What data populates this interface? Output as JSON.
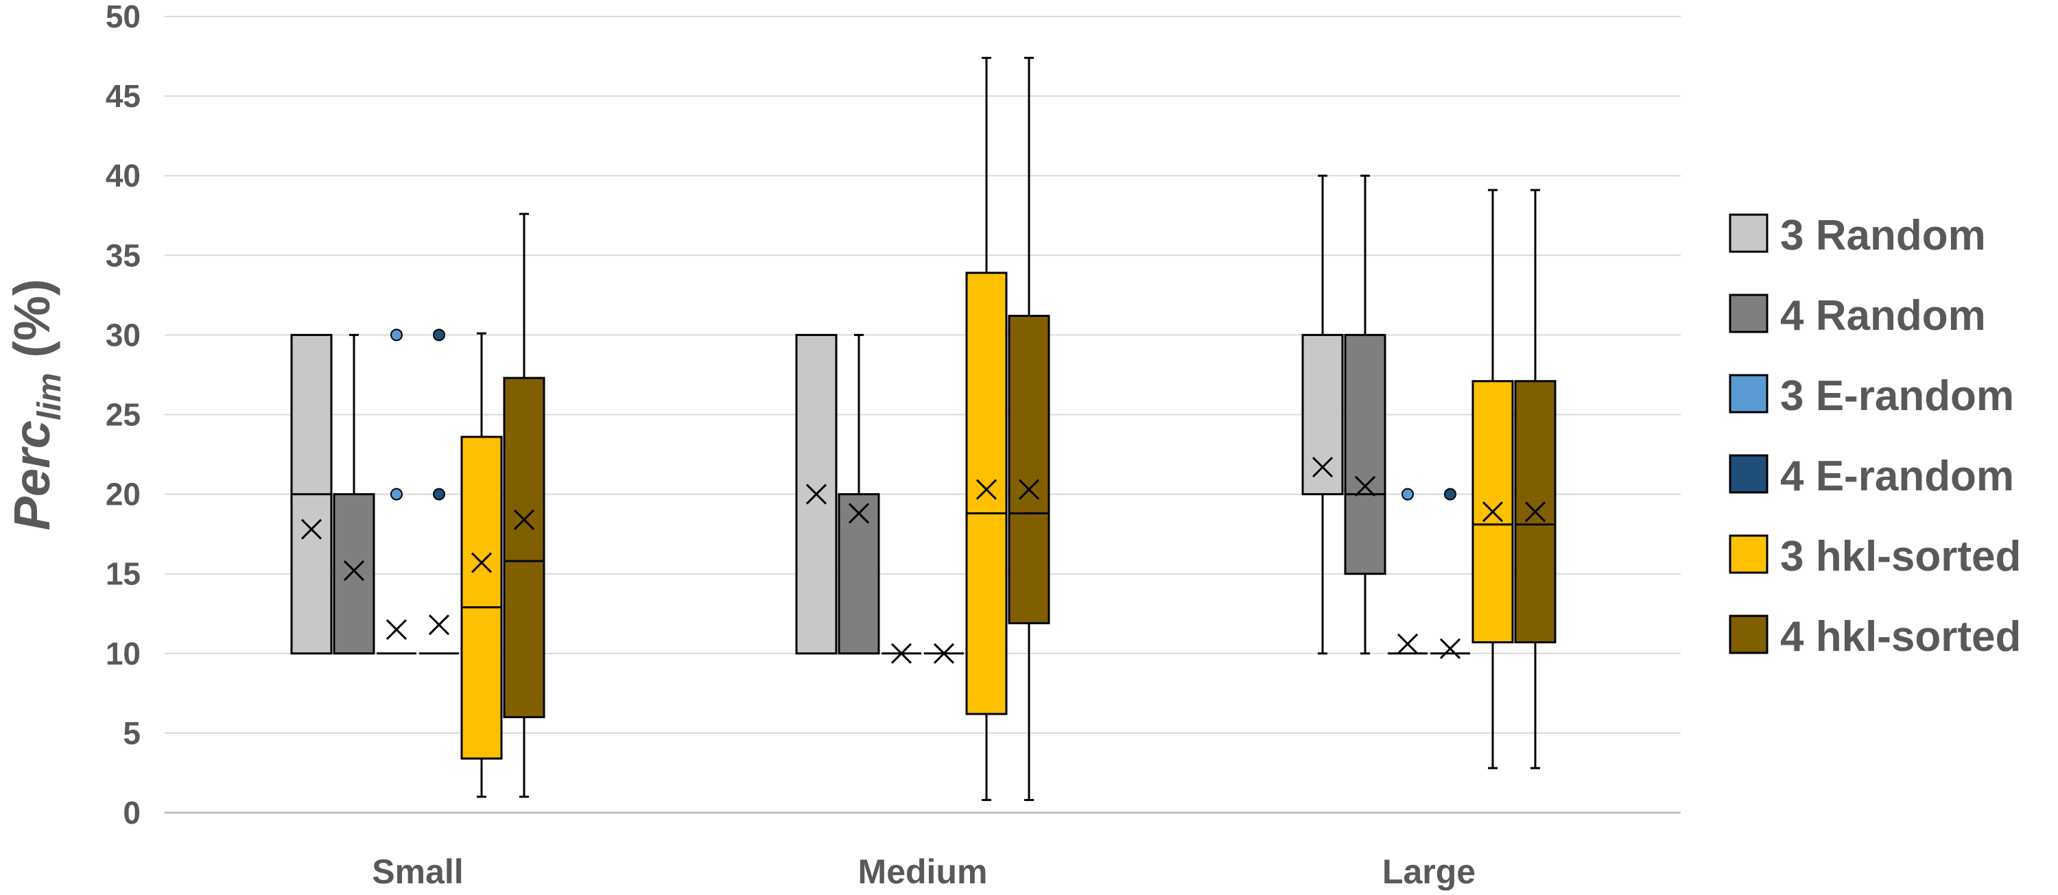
{
  "chart_data": {
    "type": "box",
    "ylabel_main": "Perc",
    "ylabel_sub": "lim",
    "ylabel_unit": "(%)",
    "ylim": [
      0,
      50
    ],
    "yticks": [
      0,
      5,
      10,
      15,
      20,
      25,
      30,
      35,
      40,
      45,
      50
    ],
    "grid": true,
    "legend_position": "right",
    "categories": [
      "Small",
      "Medium",
      "Large"
    ],
    "series": [
      {
        "name": "3 Random",
        "color": "#C8C8C8",
        "boxes": [
          {
            "min": 10,
            "q1": 10,
            "median": 20,
            "q3": 30,
            "max": 30,
            "mean": 17.8,
            "outliers": []
          },
          {
            "min": 10,
            "q1": 10,
            "median": 30,
            "q3": 30,
            "max": 30,
            "mean": 20.0,
            "outliers": []
          },
          {
            "min": 10,
            "q1": 20,
            "median": 20,
            "q3": 30,
            "max": 40,
            "mean": 21.7,
            "outliers": []
          }
        ]
      },
      {
        "name": "4 Random",
        "color": "#7F7F7F",
        "boxes": [
          {
            "min": 10,
            "q1": 10,
            "median": 10,
            "q3": 20,
            "max": 30,
            "mean": 15.2,
            "outliers": []
          },
          {
            "min": 10,
            "q1": 10,
            "median": 20,
            "q3": 20,
            "max": 30,
            "mean": 18.8,
            "outliers": []
          },
          {
            "min": 10,
            "q1": 15,
            "median": 20,
            "q3": 30,
            "max": 40,
            "mean": 20.5,
            "outliers": []
          }
        ]
      },
      {
        "name": "3 E-random",
        "color": "#5B9BD5",
        "boxes": [
          {
            "min": 10,
            "q1": 10,
            "median": 10,
            "q3": 10,
            "max": 10,
            "mean": 11.5,
            "outliers": [
              20,
              30
            ]
          },
          {
            "min": 10,
            "q1": 10,
            "median": 10,
            "q3": 10,
            "max": 10,
            "mean": 10.0,
            "outliers": []
          },
          {
            "min": 10,
            "q1": 10,
            "median": 10,
            "q3": 10,
            "max": 10,
            "mean": 10.6,
            "outliers": [
              20
            ]
          }
        ]
      },
      {
        "name": "4 E-random",
        "color": "#1F4E79",
        "boxes": [
          {
            "min": 10,
            "q1": 10,
            "median": 10,
            "q3": 10,
            "max": 10,
            "mean": 11.8,
            "outliers": [
              20,
              30
            ]
          },
          {
            "min": 10,
            "q1": 10,
            "median": 10,
            "q3": 10,
            "max": 10,
            "mean": 10.0,
            "outliers": []
          },
          {
            "min": 10,
            "q1": 10,
            "median": 10,
            "q3": 10,
            "max": 10,
            "mean": 10.3,
            "outliers": [
              20
            ]
          }
        ]
      },
      {
        "name": "3 hkl-sorted",
        "color": "#FFC000",
        "boxes": [
          {
            "min": 1.0,
            "q1": 3.4,
            "median": 12.9,
            "q3": 23.6,
            "max": 30.1,
            "mean": 15.7,
            "outliers": []
          },
          {
            "min": 0.8,
            "q1": 6.2,
            "median": 18.8,
            "q3": 33.9,
            "max": 47.4,
            "mean": 20.3,
            "outliers": []
          },
          {
            "min": 2.8,
            "q1": 10.7,
            "median": 18.1,
            "q3": 27.1,
            "max": 39.1,
            "mean": 18.9,
            "outliers": []
          }
        ]
      },
      {
        "name": "4 hkl-sorted",
        "color": "#7F5F00",
        "boxes": [
          {
            "min": 1.0,
            "q1": 6.0,
            "median": 15.8,
            "q3": 27.3,
            "max": 37.6,
            "mean": 18.4,
            "outliers": []
          },
          {
            "min": 0.8,
            "q1": 11.9,
            "median": 18.8,
            "q3": 31.2,
            "max": 47.4,
            "mean": 20.3,
            "outliers": []
          },
          {
            "min": 2.8,
            "q1": 10.7,
            "median": 18.1,
            "q3": 27.1,
            "max": 39.1,
            "mean": 18.9,
            "outliers": []
          }
        ]
      }
    ]
  }
}
